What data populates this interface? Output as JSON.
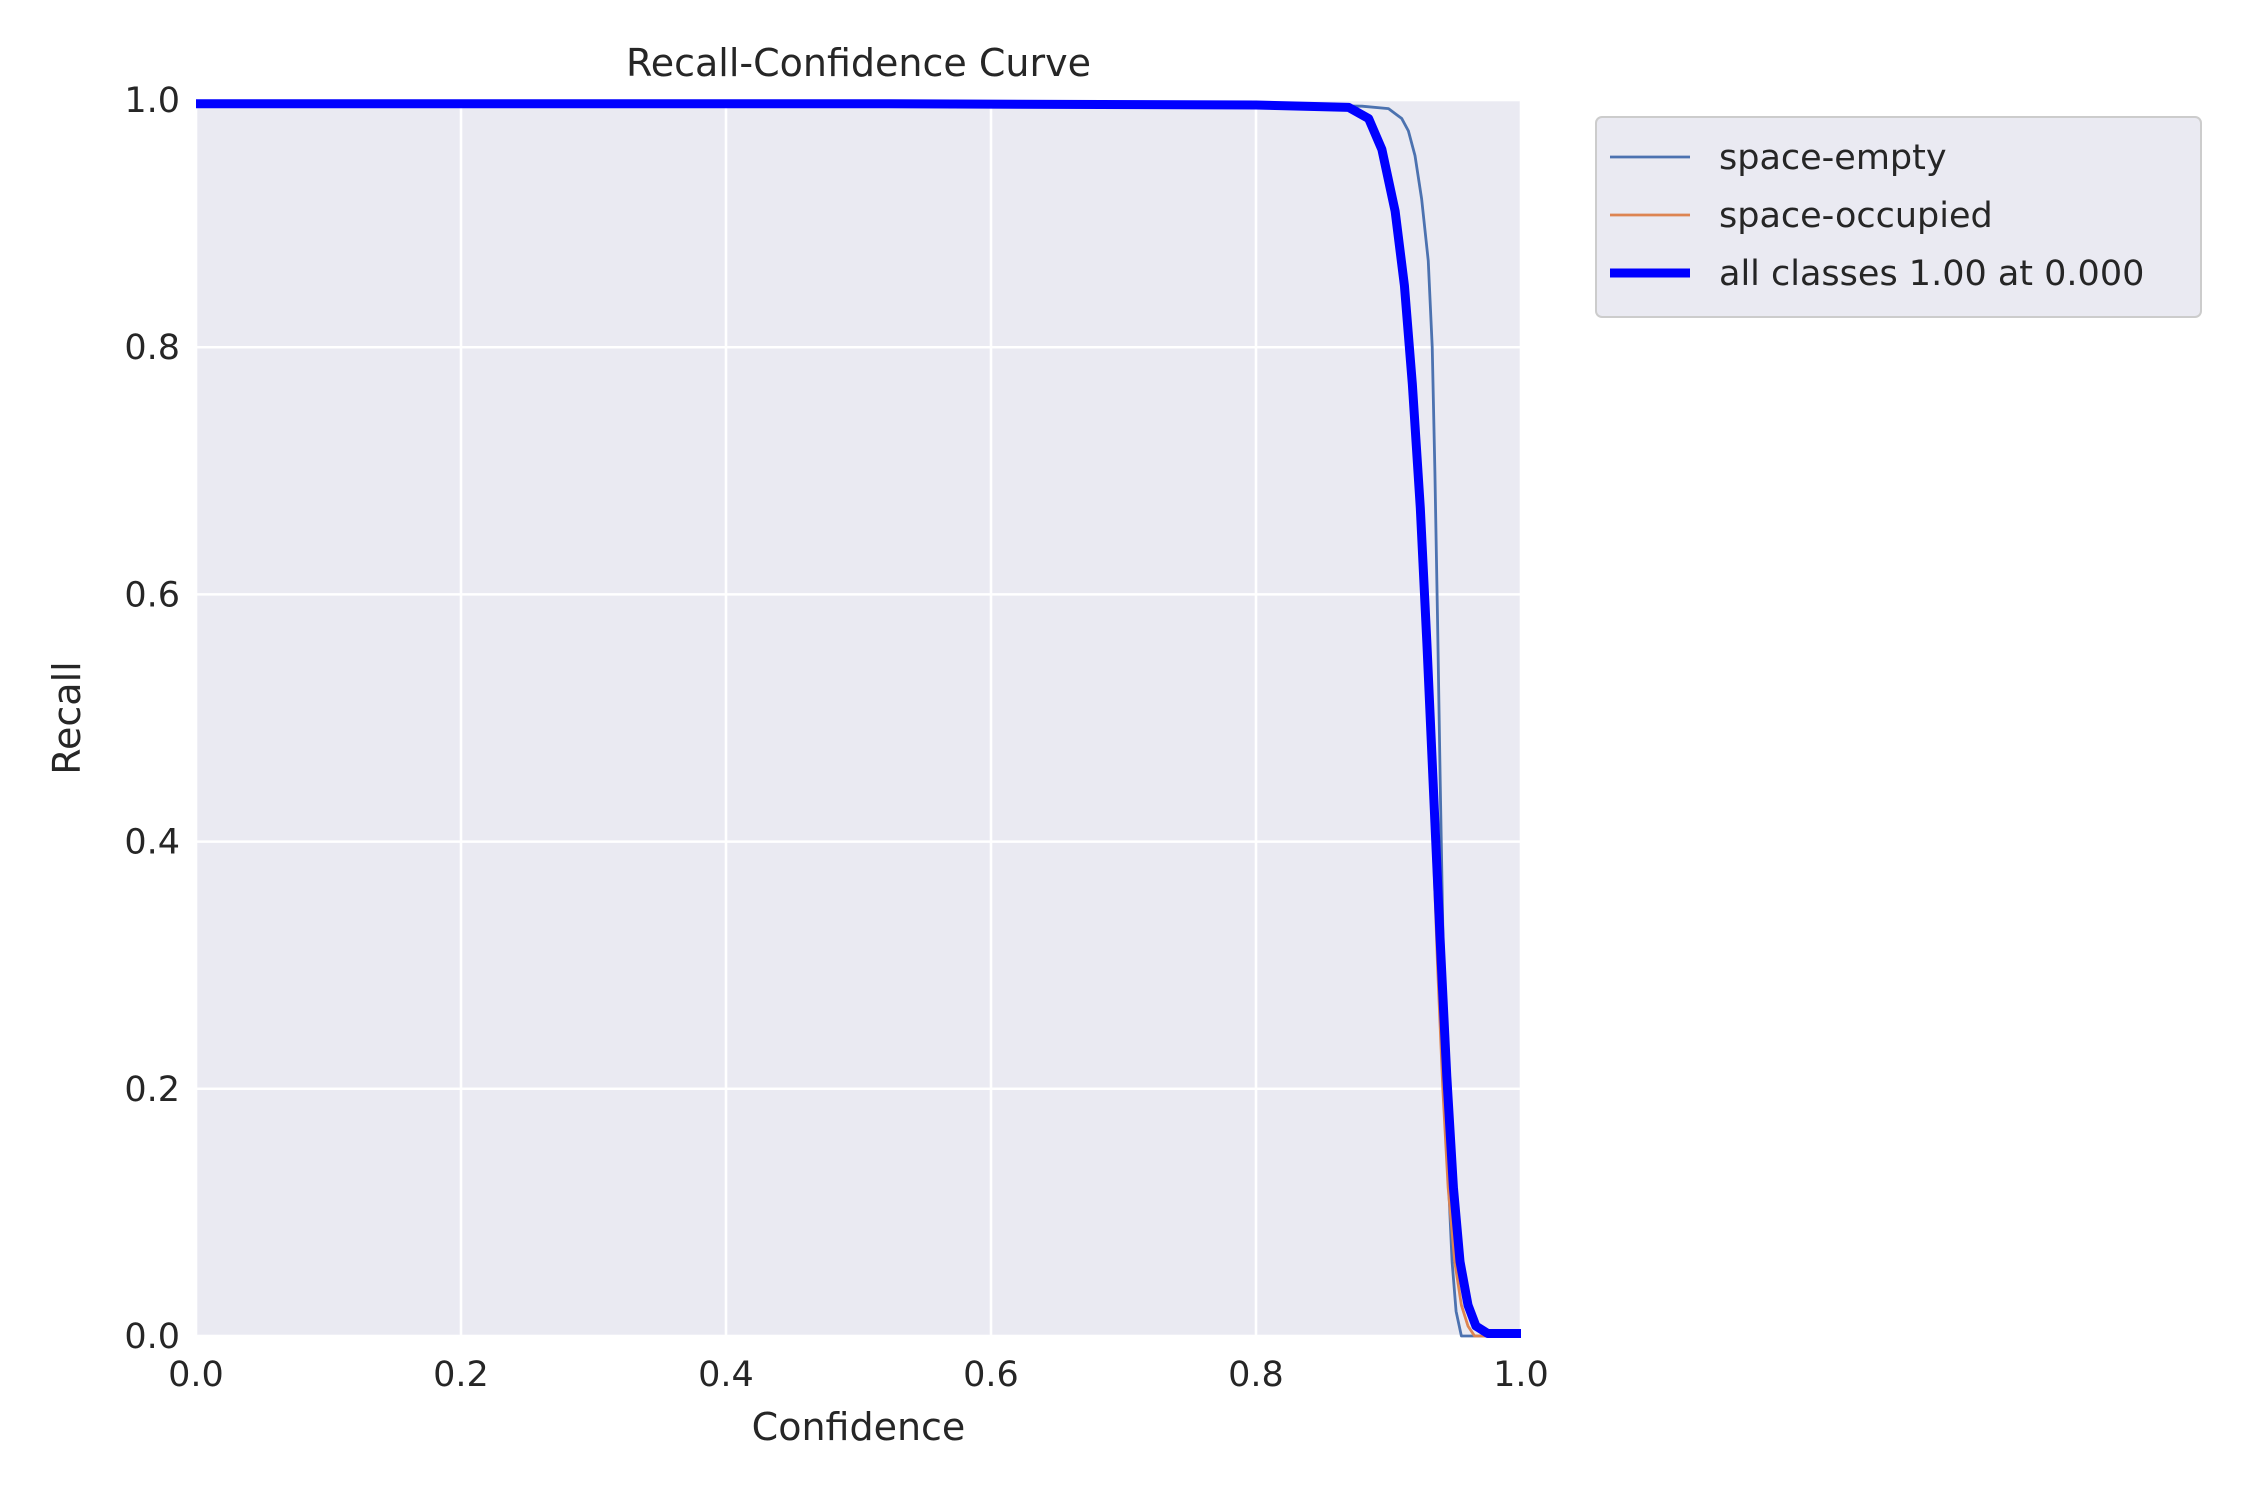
{
  "chart_data": {
    "type": "line",
    "title": "Recall-Confidence Curve",
    "xlabel": "Confidence",
    "ylabel": "Recall",
    "xlim": [
      0,
      1
    ],
    "ylim": [
      0,
      1
    ],
    "x_ticks": [
      "0.0",
      "0.2",
      "0.4",
      "0.6",
      "0.8",
      "1.0"
    ],
    "y_ticks": [
      "0.0",
      "0.2",
      "0.4",
      "0.6",
      "0.8",
      "1.0"
    ],
    "grid": true,
    "legend_position": "outside-upper-right",
    "background_color": "#eaeaf2",
    "grid_color": "#ffffff",
    "series": [
      {
        "name": "space-empty",
        "color": "#4c72b0",
        "line_width": "thin",
        "points": [
          [
            0.0,
            0.997
          ],
          [
            0.5,
            0.997
          ],
          [
            0.8,
            0.996
          ],
          [
            0.88,
            0.995
          ],
          [
            0.9,
            0.993
          ],
          [
            0.91,
            0.985
          ],
          [
            0.915,
            0.975
          ],
          [
            0.92,
            0.955
          ],
          [
            0.925,
            0.92
          ],
          [
            0.93,
            0.87
          ],
          [
            0.933,
            0.8
          ],
          [
            0.935,
            0.7
          ],
          [
            0.937,
            0.58
          ],
          [
            0.939,
            0.45
          ],
          [
            0.941,
            0.33
          ],
          [
            0.943,
            0.22
          ],
          [
            0.945,
            0.13
          ],
          [
            0.948,
            0.06
          ],
          [
            0.951,
            0.02
          ],
          [
            0.955,
            0.0
          ],
          [
            1.0,
            0.0
          ]
        ]
      },
      {
        "name": "space-occupied",
        "color": "#dd8452",
        "line_width": "thin",
        "points": [
          [
            0.0,
            0.997
          ],
          [
            0.5,
            0.997
          ],
          [
            0.8,
            0.996
          ],
          [
            0.87,
            0.993
          ],
          [
            0.885,
            0.985
          ],
          [
            0.895,
            0.965
          ],
          [
            0.905,
            0.92
          ],
          [
            0.912,
            0.86
          ],
          [
            0.918,
            0.78
          ],
          [
            0.924,
            0.67
          ],
          [
            0.929,
            0.54
          ],
          [
            0.933,
            0.42
          ],
          [
            0.937,
            0.3
          ],
          [
            0.941,
            0.2
          ],
          [
            0.945,
            0.12
          ],
          [
            0.95,
            0.06
          ],
          [
            0.955,
            0.025
          ],
          [
            0.96,
            0.008
          ],
          [
            0.965,
            0.0
          ],
          [
            1.0,
            0.0
          ]
        ]
      },
      {
        "name": "all classes 1.00 at 0.000",
        "color": "#0000ff",
        "line_width": "thick",
        "points": [
          [
            0.0,
            0.997
          ],
          [
            0.5,
            0.997
          ],
          [
            0.8,
            0.996
          ],
          [
            0.87,
            0.994
          ],
          [
            0.885,
            0.985
          ],
          [
            0.895,
            0.96
          ],
          [
            0.905,
            0.91
          ],
          [
            0.912,
            0.85
          ],
          [
            0.918,
            0.77
          ],
          [
            0.924,
            0.67
          ],
          [
            0.929,
            0.56
          ],
          [
            0.934,
            0.44
          ],
          [
            0.939,
            0.32
          ],
          [
            0.944,
            0.21
          ],
          [
            0.949,
            0.12
          ],
          [
            0.954,
            0.06
          ],
          [
            0.96,
            0.025
          ],
          [
            0.966,
            0.008
          ],
          [
            0.975,
            0.002
          ],
          [
            1.0,
            0.002
          ]
        ]
      }
    ]
  }
}
